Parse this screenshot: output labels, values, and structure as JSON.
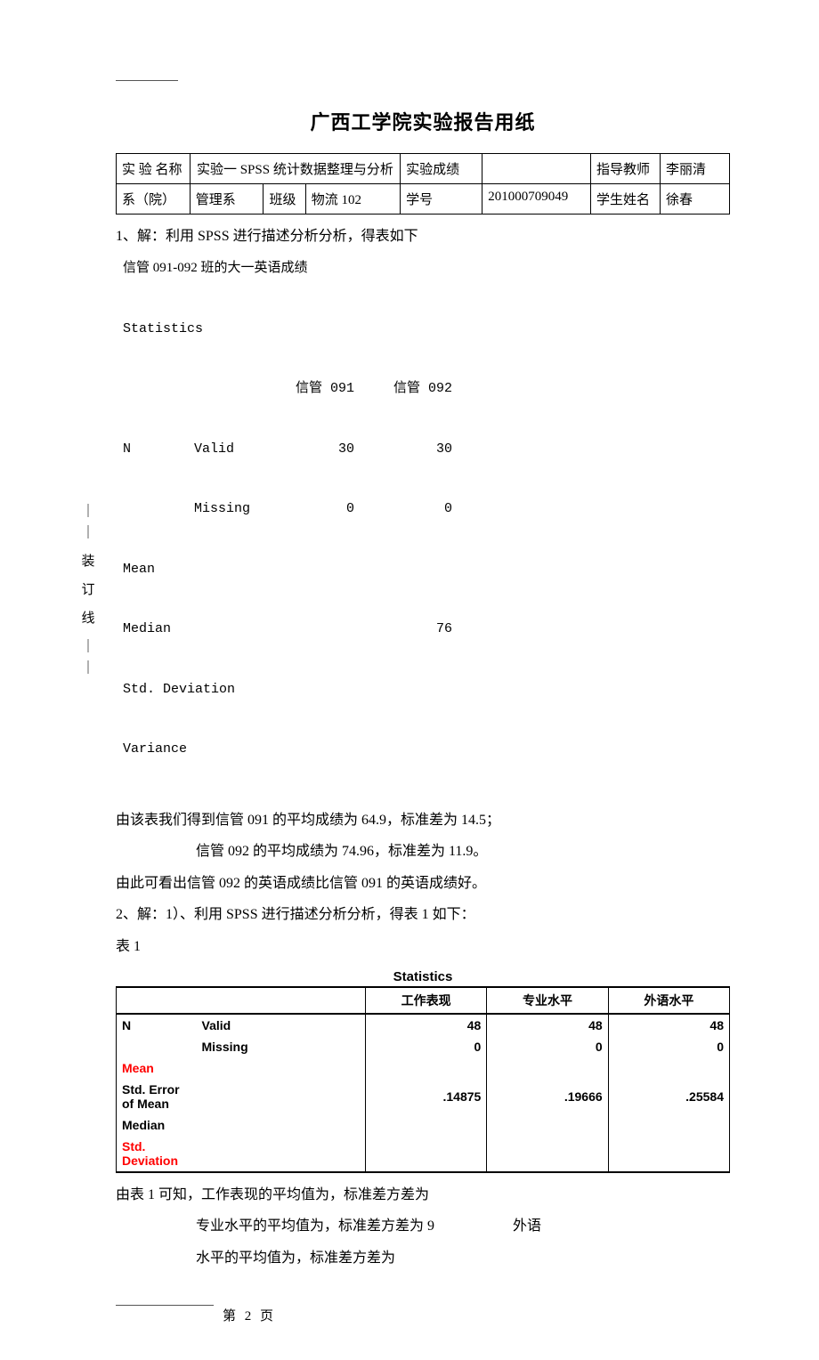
{
  "title": "广西工学院实验报告用纸",
  "header": {
    "labels": {
      "exp_name": "实 验 名称",
      "exp_grade": "实验成绩",
      "tutor": "指导教师",
      "dept": "系（院）",
      "class": "班级",
      "sid": "学号",
      "sname": "学生姓名"
    },
    "values": {
      "exp_name_val": "实验一   SPSS 统计数据整理与分析",
      "tutor_val": "李丽清",
      "dept_val": "管理系",
      "class_val": "物流 102",
      "sid_val": "201000709049",
      "sname_val": "徐春",
      "grade_val": ""
    }
  },
  "body": {
    "q1_intro": "1、解：利用 SPSS 进行描述分析分析，得表如下",
    "block1_title": "信管 091-092 班的大一英语成绩",
    "stats1": {
      "caption": "Statistics",
      "col1": "信管 091",
      "col2": "信管 092",
      "rows": {
        "n_lbl": "N",
        "valid": "Valid",
        "valid_v1": "30",
        "valid_v2": "30",
        "missing": "Missing",
        "missing_v1": "0",
        "missing_v2": "0",
        "mean": "Mean",
        "median": "Median",
        "median_v2": "76",
        "std": "Std. Deviation",
        "var": "Variance"
      }
    },
    "q1_line1": "由该表我们得到信管 091 的平均成绩为 64.9，标准差为 14.5；",
    "q1_line2": "信管 092 的平均成绩为 74.96，标准差为 11.9。",
    "q1_line3": "由此可看出信管 092 的英语成绩比信管 091 的英语成绩好。",
    "q2_intro": "2、解：1）、利用 SPSS 进行描述分析分析，得表 1 如下：",
    "q2_tab_label": "表 1",
    "stats2": {
      "caption": "Statistics",
      "headers": {
        "h1": "工作表现",
        "h2": "专业水平",
        "h3": "外语水平"
      },
      "rows": [
        {
          "l1": "N",
          "l2": "Valid",
          "v1": "48",
          "v2": "48",
          "v3": "48",
          "red": false
        },
        {
          "l1": "",
          "l2": "Missing",
          "v1": "0",
          "v2": "0",
          "v3": "0",
          "red": false
        },
        {
          "l1": "Mean",
          "l2": "",
          "v1": "",
          "v2": "",
          "v3": "",
          "red": true
        },
        {
          "l1": "Std. Error of Mean",
          "l2": "",
          "v1": ".14875",
          "v2": ".19666",
          "v3": ".25584",
          "red": false
        },
        {
          "l1": "Median",
          "l2": "",
          "v1": "",
          "v2": "",
          "v3": "",
          "red": false
        },
        {
          "l1": "Std. Deviation",
          "l2": "",
          "v1": "",
          "v2": "",
          "v3": "",
          "red": true
        }
      ]
    },
    "q2_line1": "由表 1 可知，工作表现的平均值为，标准差方差为",
    "q2_line2": "专业水平的平均值为，标准差方差为 9",
    "q2_line2_tail": "外语",
    "q2_line3": "水平的平均值为，标准差方差为"
  },
  "gutter": {
    "g1": "｜",
    "g2": "｜",
    "g3": "装",
    "g4": "订",
    "g5": "线",
    "g6": "｜",
    "g7": "｜"
  },
  "footer": "第 2 页"
}
